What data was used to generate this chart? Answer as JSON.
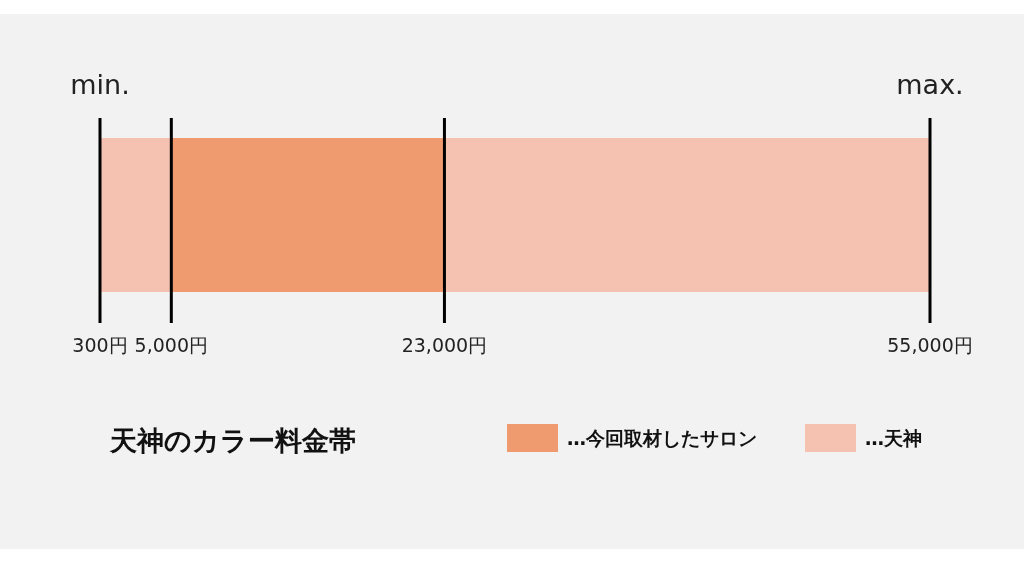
{
  "chart_data": {
    "type": "bar",
    "orientation": "horizontal",
    "title": "天神のカラー料金帯",
    "categories": [
      null
    ],
    "series": [
      {
        "name": "…天神",
        "color": "#f5c1b0",
        "values": [
          54700
        ],
        "base": [
          300
        ]
      },
      {
        "name": "…今回取材したサロン",
        "color": "#f09a70",
        "values": [
          18000
        ],
        "base": [
          5000
        ]
      }
    ],
    "xlim": [
      300,
      55000
    ],
    "xticks": [
      {
        "value": 300,
        "label": "300円"
      },
      {
        "value": 5000,
        "label": "5,000円"
      },
      {
        "value": 23000,
        "label": "23,000円"
      },
      {
        "value": 55000,
        "label": "55,000円"
      }
    ],
    "ref_lines": [
      {
        "axis": "x",
        "value": 300
      },
      {
        "axis": "x",
        "value": 5000
      },
      {
        "axis": "x",
        "value": 23000
      },
      {
        "axis": "x",
        "value": 55000
      }
    ],
    "annotations": [
      "min.",
      "max."
    ],
    "legend": "bottom right"
  }
}
